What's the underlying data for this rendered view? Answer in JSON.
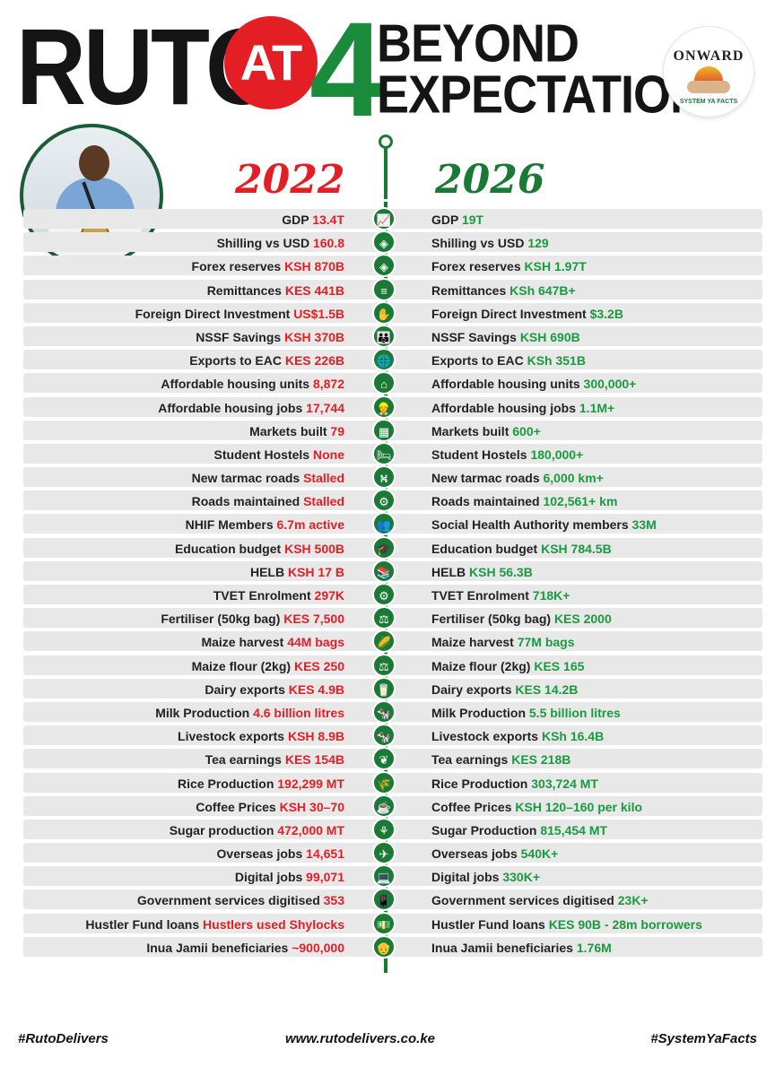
{
  "header": {
    "title_word": "RUTO",
    "at": "AT",
    "number": "4",
    "line1": "BEYOND",
    "line2": "EXPECTATION"
  },
  "logo": {
    "name": "ONWARD",
    "tagline": "SYSTEM YA FACTS"
  },
  "years": {
    "before": "2022",
    "after": "2026"
  },
  "colors": {
    "red": "#e31e24",
    "green": "#1a7a35",
    "row_bg": "#e8e8e8"
  },
  "rows": [
    {
      "icon": "growth-chart-icon",
      "glyph": "📈",
      "label_before": "GDP",
      "value_before": "13.4T",
      "label_after": "GDP",
      "value_after": "19T"
    },
    {
      "icon": "currency-cube-icon",
      "glyph": "◈",
      "label_before": "Shilling vs USD",
      "value_before": "160.8",
      "label_after": "Shilling vs USD",
      "value_after": "129"
    },
    {
      "icon": "reserve-cube-icon",
      "glyph": "◈",
      "label_before": "Forex reserves",
      "value_before": "KSH 870B",
      "label_after": "Forex reserves",
      "value_after": "KSH 1.97T"
    },
    {
      "icon": "coins-stack-icon",
      "glyph": "≡",
      "label_before": "Remittances",
      "value_before": "KES 441B",
      "label_after": "Remittances",
      "value_after": "KSh 647B+"
    },
    {
      "icon": "investment-hand-icon",
      "glyph": "✋",
      "label_before": "Foreign Direct Investment",
      "value_before": "US$1.5B",
      "label_after": "Foreign Direct Investment",
      "value_after": "$3.2B"
    },
    {
      "icon": "people-group-icon",
      "glyph": "👪",
      "label_before": "NSSF Savings",
      "value_before": "KSH 370B",
      "label_after": "NSSF Savings",
      "value_after": "KSH 690B"
    },
    {
      "icon": "globe-icon",
      "glyph": "🌐",
      "label_before": "Exports to EAC",
      "value_before": "KES 226B",
      "label_after": "Exports to EAC",
      "value_after": "KSh 351B"
    },
    {
      "icon": "house-icon",
      "glyph": "⌂",
      "label_before": "Affordable housing units",
      "value_before": "8,872",
      "label_after": "Affordable housing units",
      "value_after": "300,000+"
    },
    {
      "icon": "worker-icon",
      "glyph": "👷",
      "label_before": "Affordable housing jobs",
      "value_before": "17,744",
      "label_after": "Affordable housing jobs",
      "value_after": "1.1M+"
    },
    {
      "icon": "market-stall-icon",
      "glyph": "▦",
      "label_before": "Markets built",
      "value_before": "79",
      "label_after": "Markets built",
      "value_after": "600+"
    },
    {
      "icon": "bed-icon",
      "glyph": "🛏",
      "label_before": "Student Hostels",
      "value_before": "None",
      "label_after": "Student Hostels",
      "value_after": "180,000+"
    },
    {
      "icon": "road-icon",
      "glyph": "⛕",
      "label_before": "New tarmac roads",
      "value_before": "Stalled",
      "label_after": "New tarmac roads",
      "value_after": "6,000 km+"
    },
    {
      "icon": "road-maintenance-icon",
      "glyph": "⚙",
      "label_before": "Roads maintained",
      "value_before": "Stalled",
      "label_after": "Roads maintained",
      "value_after": "102,561+ km"
    },
    {
      "icon": "health-people-icon",
      "glyph": "👥",
      "label_before": "NHIF Members",
      "value_before": "6.7m active",
      "label_after": "Social Health Authority members",
      "value_after": "33M"
    },
    {
      "icon": "graduation-cap-icon",
      "glyph": "🎓",
      "label_before": "Education budget",
      "value_before": "KSH 500B",
      "label_after": "Education budget",
      "value_after": "KSH 784.5B"
    },
    {
      "icon": "books-icon",
      "glyph": "📚",
      "label_before": "HELB",
      "value_before": "KSH 17 B",
      "label_after": "HELB",
      "value_after": "KSH 56.3B"
    },
    {
      "icon": "gear-icon",
      "glyph": "⚙",
      "label_before": "TVET Enrolment",
      "value_before": "297K",
      "label_after": "TVET Enrolment",
      "value_after": "718K+"
    },
    {
      "icon": "fertiliser-bag-icon",
      "glyph": "⚖",
      "label_before": "Fertiliser (50kg bag)",
      "value_before": "KES 7,500",
      "label_after": "Fertiliser (50kg bag)",
      "value_after": "KES 2000"
    },
    {
      "icon": "maize-icon",
      "glyph": "🌽",
      "label_before": "Maize harvest",
      "value_before": "44M bags",
      "label_after": "Maize harvest",
      "value_after": "77M bags"
    },
    {
      "icon": "flour-scale-icon",
      "glyph": "⚖",
      "label_before": "Maize flour (2kg)",
      "value_before": "KES 250",
      "label_after": "Maize flour (2kg)",
      "value_after": "KES 165"
    },
    {
      "icon": "milk-carton-icon",
      "glyph": "🥛",
      "label_before": "Dairy exports",
      "value_before": "KES 4.9B",
      "label_after": "Dairy exports",
      "value_after": "KES 14.2B"
    },
    {
      "icon": "cow-icon",
      "glyph": "🐄",
      "label_before": "Milk Production",
      "value_before": "4.6 billion litres",
      "label_after": "Milk Production",
      "value_after": "5.5 billion litres"
    },
    {
      "icon": "livestock-icon",
      "glyph": "🐄",
      "label_before": "Livestock exports",
      "value_before": "KSH 8.9B",
      "label_after": "Livestock exports",
      "value_after": "KSh 16.4B"
    },
    {
      "icon": "tea-leaf-icon",
      "glyph": "❦",
      "label_before": "Tea earnings",
      "value_before": "KES 154B",
      "label_after": "Tea earnings",
      "value_after": "KES 218B"
    },
    {
      "icon": "rice-plant-icon",
      "glyph": "🌾",
      "label_before": "Rice Production",
      "value_before": "192,299 MT",
      "label_after": "Rice Production",
      "value_after": "303,724 MT"
    },
    {
      "icon": "coffee-bean-icon",
      "glyph": "☕",
      "label_before": "Coffee Prices",
      "value_before": "KSH 30–70",
      "label_after": "Coffee Prices",
      "value_after": "KSH 120–160 per kilo"
    },
    {
      "icon": "sugarcane-icon",
      "glyph": "⚘",
      "label_before": "Sugar production",
      "value_before": "472,000 MT",
      "label_after": "Sugar Production",
      "value_after": "815,454 MT"
    },
    {
      "icon": "world-travel-icon",
      "glyph": "✈",
      "label_before": "Overseas jobs",
      "value_before": "14,651",
      "label_after": "Overseas jobs",
      "value_after": "540K+"
    },
    {
      "icon": "laptop-icon",
      "glyph": "💻",
      "label_before": "Digital jobs",
      "value_before": "99,071",
      "label_after": "Digital jobs",
      "value_after": "330K+"
    },
    {
      "icon": "mobile-phone-icon",
      "glyph": "📱",
      "label_before": "Government services digitised",
      "value_before": "353",
      "label_after": "Government services digitised",
      "value_after": "23K+"
    },
    {
      "icon": "money-note-icon",
      "glyph": "💵",
      "label_before": "Hustler Fund loans",
      "value_before": "Hustlers used Shylocks",
      "label_after": "Hustler Fund loans",
      "value_after": "KES 90B - 28m borrowers"
    },
    {
      "icon": "elderly-people-icon",
      "glyph": "👴",
      "label_before": "Inua Jamii beneficiaries",
      "value_before": "~900,000",
      "label_after": "Inua Jamii beneficiaries",
      "value_after": "1.76M"
    }
  ],
  "footer": {
    "left": "#RutoDelivers",
    "center": "www.rutodelivers.co.ke",
    "right": "#SystemYaFacts"
  }
}
